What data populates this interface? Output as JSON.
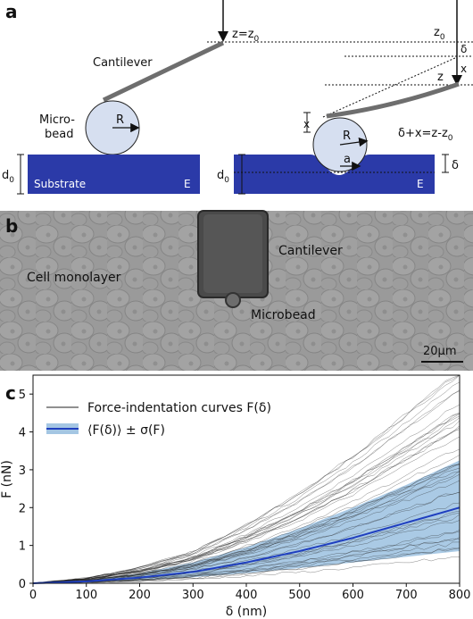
{
  "panel_a": {
    "letter": "a",
    "z_eq_z0": "z=z",
    "z0_sub": "0",
    "z0_label": "z",
    "cantilever": "Cantilever",
    "micro": "Micro-",
    "bead": "bead",
    "R": "R",
    "d": "d",
    "d_sub": "0",
    "substrate": "Substrate",
    "E": "E",
    "delta": "δ",
    "x": "x",
    "z": "z",
    "a": "a",
    "relation": "δ+x=z-z",
    "relation_sub": "0",
    "colors": {
      "substrate": "#2f3fb0",
      "bead": "#d6dff0",
      "cantilever": "#707070"
    }
  },
  "panel_b": {
    "letter": "b",
    "cantilever": "Cantilever",
    "cell_monolayer": "Cell monolayer",
    "microbead": "Microbead",
    "scalebar": "20µm"
  },
  "panel_c": {
    "letter": "c",
    "legend_curves": "Force-indentation curves F(δ)",
    "legend_mean": "⟨F(δ)⟩ ± σ(F)",
    "colors": {
      "mean": "#1f3fbf",
      "band": "#8db8dc",
      "curves": "#222222"
    }
  },
  "chart_data": {
    "type": "line",
    "xlabel": "δ (nm)",
    "ylabel": "F (nN)",
    "xlim": [
      0,
      800
    ],
    "ylim": [
      0,
      5.5
    ],
    "xticks": [
      0,
      100,
      200,
      300,
      400,
      500,
      600,
      700,
      800
    ],
    "yticks": [
      0,
      1,
      2,
      3,
      4,
      5
    ],
    "legend": "top-left",
    "grid": false,
    "x": [
      0,
      100,
      200,
      300,
      400,
      500,
      600,
      700,
      800
    ],
    "series": [
      {
        "name": "⟨F(δ)⟩ ± σ(F)",
        "values": [
          0,
          0.05,
          0.15,
          0.3,
          0.55,
          0.85,
          1.2,
          1.6,
          2.0
        ]
      },
      {
        "name": "",
        "values": [
          0,
          0.08,
          0.26,
          0.55,
          0.95,
          1.45,
          2.0,
          2.6,
          3.25
        ]
      },
      {
        "name": "",
        "values": [
          0,
          0.03,
          0.08,
          0.16,
          0.27,
          0.4,
          0.55,
          0.7,
          0.85
        ]
      }
    ]
  }
}
